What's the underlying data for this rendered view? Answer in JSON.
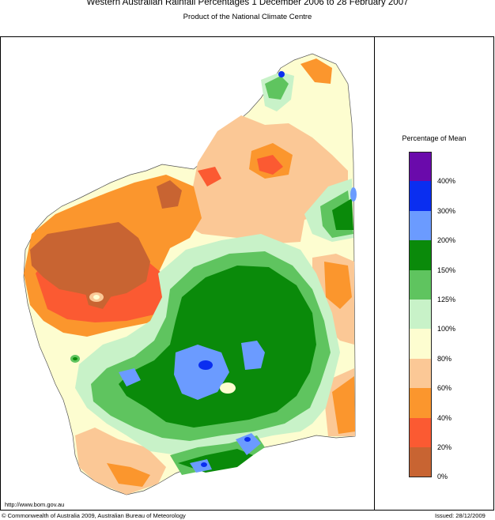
{
  "header": {
    "title": "Western Australian Rainfall Percentages 1 December 2006 to 28 February 2007",
    "subtitle": "Product of the National Climate Centre"
  },
  "legend": {
    "title": "Percentage of Mean",
    "bins": [
      {
        "color": "#6a0aab"
      },
      {
        "color": "#0a2ef0"
      },
      {
        "color": "#6b9bff"
      },
      {
        "color": "#0a8a0a"
      },
      {
        "color": "#5fc45f"
      },
      {
        "color": "#c8f2c8"
      },
      {
        "color": "#fdfdd0"
      },
      {
        "color": "#fbc896"
      },
      {
        "color": "#fb962d"
      },
      {
        "color": "#fb5a32"
      },
      {
        "color": "#c86432"
      }
    ],
    "ticks": [
      "400%",
      "300%",
      "200%",
      "150%",
      "125%",
      "100%",
      "80%",
      "60%",
      "40%",
      "20%",
      "0%"
    ]
  },
  "footer": {
    "url": "http://www.bom.gov.au",
    "copyright": "© Commonwealth of Australia 2009, Australian Bureau of Meteorology",
    "issued": "Issued: 28/12/2009"
  }
}
